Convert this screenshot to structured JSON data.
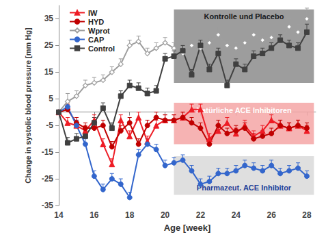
{
  "chart_data": {
    "type": "line",
    "x_label": "Age [week]",
    "y_label": "Change in systolic blood pressure [mm Hg]",
    "x": [
      14,
      14.5,
      15,
      15.5,
      16,
      16.5,
      17,
      17.5,
      18,
      18.5,
      19,
      19.5,
      20,
      20.5,
      21,
      21.5,
      22,
      22.5,
      23,
      23.5,
      24,
      24.5,
      25,
      25.5,
      26,
      26.5,
      27,
      27.5,
      28
    ],
    "series": [
      {
        "name": "IW",
        "color": "#ee1c25",
        "marker": "triangle",
        "values": [
          0,
          -4,
          -5,
          -7,
          -3,
          -12,
          -19.5,
          -3,
          -9,
          -2,
          -11,
          -5,
          -3,
          -3,
          -2,
          1,
          1,
          -10,
          -7,
          -4,
          -8,
          -5,
          -9,
          -7,
          -3,
          -5,
          -6,
          -5,
          -7
        ],
        "errors": [
          0,
          2,
          2,
          2,
          2,
          2,
          2,
          2,
          2,
          2,
          2,
          2,
          2,
          2,
          2,
          2,
          2,
          2,
          2,
          2,
          2,
          2,
          2,
          2,
          2,
          2,
          2,
          2,
          2
        ]
      },
      {
        "name": "HYD",
        "color": "#c00000",
        "marker": "circle",
        "values": [
          0,
          1,
          -4,
          -6,
          -6,
          -5,
          -13,
          -7,
          -4,
          -12,
          -5,
          -2,
          -3,
          -3,
          -2,
          -4,
          -6,
          -12,
          -5,
          -8,
          -7,
          -6,
          -10,
          -9,
          -8,
          -5,
          -6,
          -5,
          -6
        ],
        "errors": [
          0,
          2,
          2,
          2,
          2,
          2,
          2,
          2,
          2,
          2,
          2,
          2,
          2,
          2,
          2,
          2,
          2,
          2,
          2,
          2,
          2,
          2,
          2,
          2,
          2,
          2,
          2,
          2,
          2
        ]
      },
      {
        "name": "Wprot",
        "color": "#9e9e9e",
        "marker": "diamond_open",
        "values": [
          0,
          4,
          6,
          10,
          11,
          12,
          15,
          18,
          25,
          26.5,
          22,
          24,
          26,
          24,
          22,
          25,
          24,
          26,
          29,
          25,
          24,
          26,
          29,
          27,
          28,
          27,
          32,
          30,
          35
        ],
        "errors": [
          0,
          3,
          2,
          2,
          2,
          2,
          2,
          2,
          2,
          2,
          2,
          2,
          2,
          2,
          2,
          2,
          2,
          2,
          3,
          2,
          2,
          2,
          2,
          2,
          2,
          2,
          3,
          3,
          4
        ]
      },
      {
        "name": "CAP",
        "color": "#3366cc",
        "marker": "circle",
        "values": [
          0,
          2,
          -5,
          -12,
          -24,
          -29,
          -25,
          -27,
          -32,
          -16,
          -12,
          -14,
          -20,
          -19,
          -18,
          -22,
          -27,
          -26,
          -23,
          -23,
          -22,
          -20,
          -21,
          -22,
          -20,
          -23,
          -22,
          -21,
          -24
        ],
        "errors": [
          0,
          2,
          2,
          2,
          2,
          2,
          2,
          2,
          2,
          2,
          2,
          2,
          2,
          2,
          2,
          2,
          2,
          2,
          2,
          2,
          2,
          2,
          2,
          2,
          2,
          2,
          2,
          2,
          2
        ]
      },
      {
        "name": "Control",
        "color": "#404040",
        "marker": "square",
        "values": [
          0,
          -11.5,
          -10,
          -9,
          -4,
          1.5,
          -6,
          6,
          10,
          9,
          7,
          8,
          20,
          21,
          23,
          14,
          25,
          16,
          22,
          10,
          18,
          16,
          21,
          22,
          24,
          27,
          25,
          24,
          30
        ],
        "errors": [
          0,
          2,
          2,
          2,
          2,
          2,
          2,
          2,
          2,
          2,
          2,
          2,
          2,
          2,
          2,
          2,
          2,
          2,
          2,
          2,
          2,
          2,
          2,
          2,
          2,
          2,
          2,
          2,
          3
        ]
      }
    ],
    "annotations": [
      {
        "text": "Kontrolle und Placebo",
        "color": "#8c8c8c",
        "x_range": [
          20.5,
          28.4
        ],
        "y_range": [
          11,
          38.5
        ]
      },
      {
        "text": "Natürliche ACE Inhibitoren",
        "color": "#f4a6a6",
        "x_range": [
          20.5,
          28.4
        ],
        "y_range": [
          -12,
          3.5
        ]
      },
      {
        "text": "Pharmazeut. ACE Inhibitor",
        "color": "#d9d9d9",
        "x_range": [
          20.5,
          28.4
        ],
        "y_range": [
          -31,
          -16.5
        ]
      }
    ],
    "xlim": [
      14,
      28.5
    ],
    "xticks": [
      14,
      16,
      18,
      20,
      22,
      24,
      26,
      28
    ],
    "ylim": [
      -35,
      40
    ],
    "yticks": [
      -35,
      -25,
      -15,
      -5,
      5,
      15,
      25,
      35
    ],
    "grid": false,
    "legend": "top-left"
  }
}
